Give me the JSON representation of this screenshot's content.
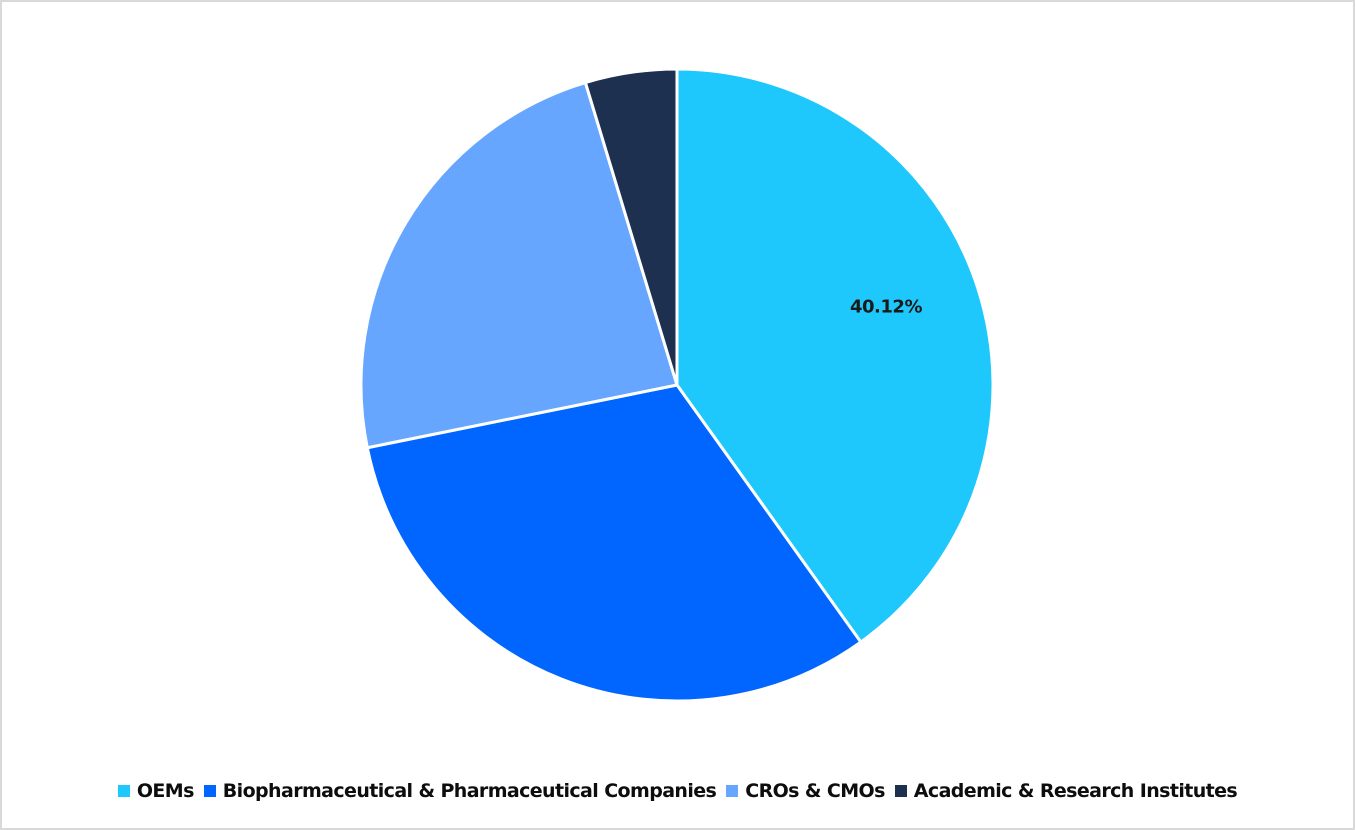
{
  "chart_data": {
    "type": "pie",
    "title": "",
    "categories": [
      "OEMs",
      "Biopharmaceutical & Pharmaceutical Companies",
      "CROs & CMOs",
      "Academic & Research Institutes"
    ],
    "values": [
      40.12,
      31.7,
      23.5,
      4.68
    ],
    "colors": [
      "#1ec8fc",
      "#0066ff",
      "#66a6ff",
      "#1e3050"
    ],
    "data_labels": [
      {
        "category": "OEMs",
        "text": "40.12%"
      }
    ],
    "start_angle_deg": 0,
    "direction": "clockwise",
    "legend_position": "bottom"
  },
  "labels": {
    "oems_pct": "40.12%"
  },
  "legend": {
    "items": [
      {
        "label": "OEMs",
        "color": "#1ec8fc"
      },
      {
        "label": "Biopharmaceutical & Pharmaceutical Companies",
        "color": "#0066ff"
      },
      {
        "label": "CROs & CMOs",
        "color": "#66a6ff"
      },
      {
        "label": "Academic & Research Institutes",
        "color": "#1e3050"
      }
    ]
  }
}
